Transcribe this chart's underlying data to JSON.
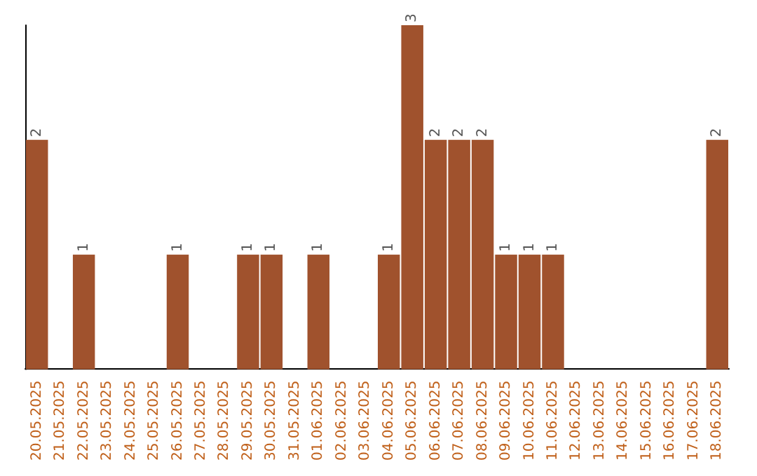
{
  "chart_data": {
    "type": "bar",
    "categories": [
      "20.05.2025",
      "21.05.2025",
      "22.05.2025",
      "23.05.2025",
      "24.05.2025",
      "25.05.2025",
      "26.05.2025",
      "27.05.2025",
      "28.05.2025",
      "29.05.2025",
      "30.05.2025",
      "31.05.2025",
      "01.06.2025",
      "02.06.2025",
      "03.06.2025",
      "04.06.2025",
      "05.06.2025",
      "06.06.2025",
      "07.06.2025",
      "08.06.2025",
      "09.06.2025",
      "10.06.2025",
      "11.06.2025",
      "12.06.2025",
      "13.06.2025",
      "14.06.2025",
      "15.06.2025",
      "16.06.2025",
      "17.06.2025",
      "18.06.2025"
    ],
    "values": [
      2,
      0,
      1,
      0,
      0,
      0,
      1,
      0,
      0,
      1,
      1,
      0,
      1,
      0,
      0,
      1,
      3,
      2,
      2,
      2,
      1,
      1,
      1,
      0,
      0,
      0,
      0,
      0,
      0,
      2
    ],
    "value_labels": [
      "2",
      null,
      "1",
      null,
      null,
      null,
      "1",
      null,
      null,
      "1",
      "1",
      null,
      "1",
      null,
      null,
      "1",
      "3",
      "2",
      "2",
      "2",
      "1",
      "1",
      "1",
      null,
      null,
      null,
      null,
      null,
      null,
      "2"
    ],
    "color": "#a0522d"
  }
}
